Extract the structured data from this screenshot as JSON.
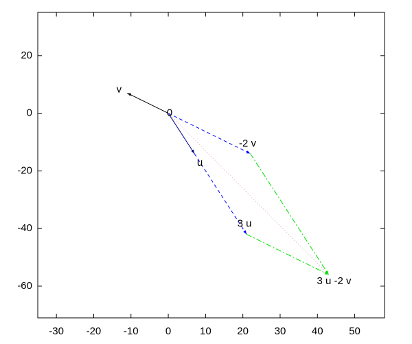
{
  "chart_data": {
    "type": "vector",
    "xlim": [
      -35,
      58
    ],
    "ylim": [
      -71,
      35
    ],
    "xticks": [
      -30,
      -20,
      -10,
      0,
      10,
      20,
      30,
      40,
      50
    ],
    "yticks": [
      -60,
      -40,
      -20,
      0,
      20
    ],
    "points": [
      {
        "label": "v",
        "x": -11,
        "y": 7
      },
      {
        "label": "0",
        "x": 0,
        "y": 0
      },
      {
        "label": "u",
        "x": 7,
        "y": -14
      },
      {
        "label": "-2 v",
        "x": 22,
        "y": -14
      },
      {
        "label": "3 u",
        "x": 21,
        "y": -42
      },
      {
        "label": "3 u -2 v",
        "x": 43,
        "y": -56
      }
    ],
    "segments": [
      {
        "x": [
          0,
          7
        ],
        "y": [
          0,
          -14
        ],
        "color": "#00008b",
        "style": "solid",
        "arrow": true
      },
      {
        "x": [
          0,
          -11
        ],
        "y": [
          0,
          7
        ],
        "color": "#000000",
        "style": "solid",
        "arrow": true
      },
      {
        "x": [
          0,
          22
        ],
        "y": [
          0,
          -14
        ],
        "color": "#0000ff",
        "style": "dashed",
        "arrow": true
      },
      {
        "x": [
          7,
          21
        ],
        "y": [
          -14,
          -42
        ],
        "color": "#0000ff",
        "style": "dashed",
        "arrow": true
      },
      {
        "x": [
          22,
          43
        ],
        "y": [
          -14,
          -56
        ],
        "color": "#00dd00",
        "style": "dashdot",
        "arrow": true
      },
      {
        "x": [
          21,
          43
        ],
        "y": [
          -42,
          -56
        ],
        "color": "#00dd00",
        "style": "dashdot",
        "arrow": true
      },
      {
        "x": [
          0,
          43
        ],
        "y": [
          0,
          -56
        ],
        "color": "#e0a0a0",
        "style": "dotted",
        "arrow": false
      }
    ]
  }
}
